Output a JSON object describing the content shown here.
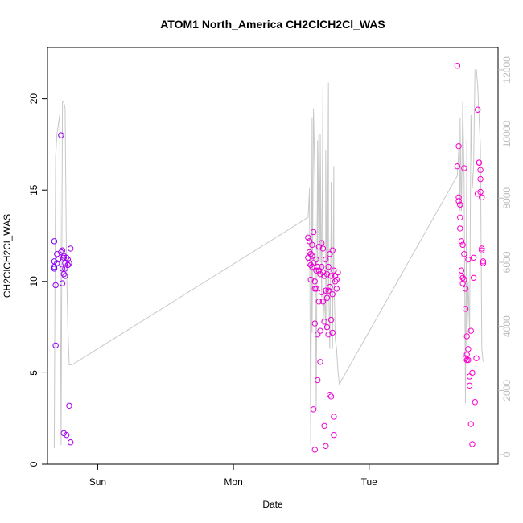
{
  "chart_data": {
    "type": "scatter",
    "title": "ATOM1 North_America CH2ClCH2Cl_WAS",
    "xlabel": "Date",
    "ylabel": "CH2ClCH2Cl_WAS",
    "x_ticks": [
      "Sun",
      "Mon",
      "Tue"
    ],
    "y_ticks": [
      "0",
      "5",
      "10",
      "15",
      "20"
    ],
    "y2_ticks": [
      "0",
      "2000",
      "4000",
      "6000",
      "8000",
      "10000",
      "12000"
    ],
    "x_unit": "days after 2016-07-30 00:00 (Sun=1, Mon=2, Tue=3)",
    "xlim": [
      0.63,
      3.95
    ],
    "ylim": [
      0,
      22.8
    ],
    "y2lim": [
      -300,
      12700
    ],
    "colors": {
      "points_start": "#7a00ff",
      "points_end": "#ff00cc",
      "altitude_line": "#c8c8c8"
    },
    "series": [
      {
        "name": "CH2ClCH2Cl_WAS",
        "kind": "points",
        "x": [
          0.68,
          0.68,
          0.68,
          0.68,
          0.69,
          0.69,
          0.7,
          0.7,
          0.71,
          0.73,
          0.73,
          0.74,
          0.74,
          0.74,
          0.75,
          0.75,
          0.75,
          0.75,
          0.76,
          0.76,
          0.76,
          0.77,
          0.77,
          0.78,
          0.78,
          0.78,
          0.79,
          0.79,
          0.8,
          0.8,
          2.55,
          2.55,
          2.56,
          2.56,
          2.56,
          2.57,
          2.57,
          2.57,
          2.58,
          2.58,
          2.58,
          2.59,
          2.59,
          2.59,
          2.6,
          2.6,
          2.6,
          2.6,
          2.61,
          2.61,
          2.61,
          2.62,
          2.62,
          2.62,
          2.63,
          2.63,
          2.63,
          2.64,
          2.64,
          2.64,
          2.65,
          2.65,
          2.65,
          2.66,
          2.66,
          2.66,
          2.67,
          2.67,
          2.67,
          2.68,
          2.68,
          2.68,
          2.69,
          2.69,
          2.69,
          2.7,
          2.7,
          2.7,
          2.71,
          2.71,
          2.71,
          2.72,
          2.72,
          2.72,
          2.73,
          2.73,
          2.73,
          2.74,
          2.74,
          2.74,
          2.75,
          2.75,
          2.76,
          2.76,
          2.77,
          3.65,
          3.65,
          3.66,
          3.66,
          3.66,
          3.67,
          3.67,
          3.67,
          3.68,
          3.68,
          3.68,
          3.69,
          3.69,
          3.69,
          3.7,
          3.7,
          3.7,
          3.71,
          3.71,
          3.71,
          3.72,
          3.72,
          3.72,
          3.73,
          3.73,
          3.73,
          3.74,
          3.74,
          3.75,
          3.75,
          3.76,
          3.76,
          3.77,
          3.77,
          3.78,
          3.79,
          3.8,
          3.8,
          3.81,
          3.81,
          3.82,
          3.82,
          3.82,
          3.83,
          3.83,
          3.83,
          3.84,
          3.84
        ],
        "y": [
          12.2,
          11.1,
          10.8,
          10.7,
          9.8,
          6.5,
          11.0,
          11.5,
          11.2,
          18.0,
          11.6,
          11.7,
          10.7,
          9.9,
          11.4,
          11.3,
          10.4,
          1.7,
          10.3,
          11.0,
          10.7,
          11.3,
          1.6,
          11.2,
          10.9,
          10.9,
          11.0,
          3.2,
          1.2,
          11.8,
          12.4,
          11.3,
          12.2,
          11.6,
          11.0,
          10.1,
          11.5,
          10.9,
          12.0,
          11.4,
          10.8,
          12.7,
          11.0,
          3.0,
          0.8,
          10.0,
          9.6,
          7.7,
          11.2,
          10.6,
          9.6,
          10.8,
          7.1,
          4.6,
          11.9,
          10.6,
          8.9,
          10.4,
          5.6,
          7.3,
          12.1,
          10.8,
          9.4,
          11.8,
          10.5,
          8.9,
          10.3,
          7.8,
          2.1,
          11.2,
          9.5,
          1.0,
          10.4,
          9.1,
          7.5,
          10.8,
          9.5,
          7.1,
          11.5,
          9.7,
          3.8,
          10.3,
          7.9,
          3.7,
          11.7,
          9.3,
          7.2,
          10.6,
          2.6,
          1.6,
          10.3,
          10.0,
          10.1,
          9.6,
          10.5,
          21.8,
          16.3,
          17.4,
          14.4,
          14.6,
          14.2,
          13.5,
          12.9,
          12.2,
          10.6,
          10.3,
          12.0,
          10.2,
          9.9,
          16.2,
          11.5,
          10.1,
          8.5,
          9.6,
          5.8,
          7.0,
          5.7,
          6.0,
          11.2,
          6.3,
          5.7,
          4.8,
          4.3,
          2.2,
          7.3,
          1.1,
          5.0,
          11.3,
          10.2,
          3.4,
          5.8,
          14.8,
          19.4,
          16.5,
          16.5,
          16.1,
          15.6,
          14.9,
          14.6,
          11.8,
          11.7,
          11.1,
          11.0
        ],
        "color_mode": "time-gradient"
      },
      {
        "name": "altitude",
        "kind": "line",
        "axis": "right",
        "x": [
          0.68,
          0.69,
          0.7,
          0.72,
          0.73,
          0.74,
          0.75,
          0.76,
          0.77,
          0.78,
          0.79,
          0.8,
          0.81,
          0.81,
          2.55,
          2.56,
          2.56,
          2.57,
          2.58,
          2.58,
          2.59,
          2.6,
          2.6,
          2.61,
          2.62,
          2.62,
          2.63,
          2.64,
          2.64,
          2.65,
          2.66,
          2.66,
          2.67,
          2.68,
          2.68,
          2.69,
          2.7,
          2.7,
          2.71,
          2.72,
          2.72,
          2.73,
          2.74,
          2.74,
          2.75,
          2.76,
          2.77,
          2.78,
          3.65,
          3.66,
          3.67,
          3.67,
          3.68,
          3.69,
          3.7,
          3.71,
          3.72,
          3.72,
          3.73,
          3.74,
          3.75,
          3.76,
          3.77,
          3.78,
          3.79,
          3.8,
          3.81,
          3.82,
          3.83,
          3.84
        ],
        "y": [
          200,
          9300,
          10000,
          10600,
          300,
          11000,
          11000,
          10800,
          6000,
          4000,
          2800,
          2800,
          2800,
          2800,
          7400,
          8200,
          8300,
          300,
          10500,
          3800,
          10800,
          8600,
          8600,
          1400,
          9800,
          6000,
          10000,
          6000,
          10000,
          4900,
          11500,
          4000,
          5000,
          3900,
          9500,
          3500,
          11600,
          6000,
          3300,
          7200,
          8500,
          3300,
          9000,
          6000,
          3600,
          3300,
          2600,
          2200,
          8700,
          9500,
          7600,
          10500,
          7600,
          11000,
          8600,
          1600,
          9800,
          3400,
          5400,
          3800,
          10600,
          8300,
          9000,
          12000,
          12000,
          11500,
          10500,
          9600,
          3300,
          2900
        ]
      }
    ]
  }
}
